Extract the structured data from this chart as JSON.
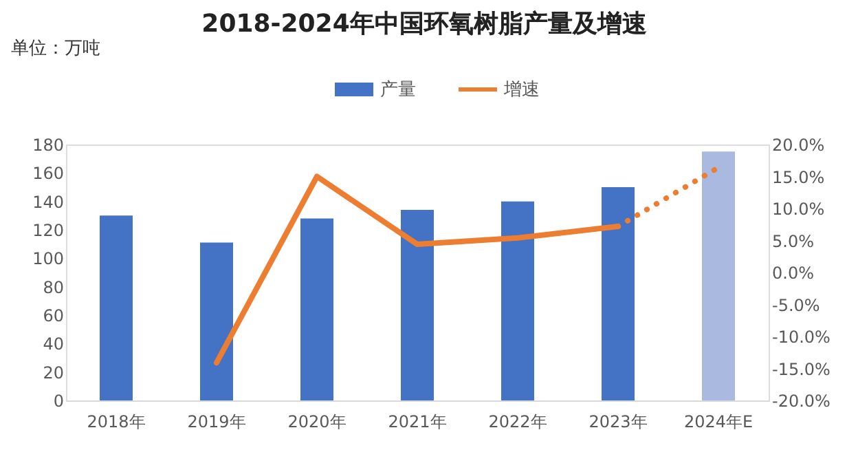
{
  "chart_data": {
    "type": "bar",
    "title": "2018-2024年中国环氧树脂产量及增速",
    "annotations": [
      "单位：万吨"
    ],
    "categories": [
      "2018年",
      "2019年",
      "2020年",
      "2021年",
      "2022年",
      "2023年",
      "2024年E"
    ],
    "series": [
      {
        "name": "产量",
        "color": "#4472c4",
        "colors": [
          "#4472c4",
          "#4472c4",
          "#4472c4",
          "#4472c4",
          "#4472c4",
          "#4472c4",
          "#a9b9e0"
        ],
        "values": [
          130,
          111,
          128,
          134,
          140,
          150,
          175
        ]
      },
      {
        "name": "增速",
        "type": "line",
        "axis": "y2",
        "color": "#ed7d31",
        "line_style": "solid",
        "values": [
          null,
          -14.1,
          15.0,
          4.4,
          5.4,
          7.2,
          null
        ]
      },
      {
        "type": "line",
        "axis": "y2",
        "color": "#ed7d31",
        "line_style": "dotted",
        "values": [
          null,
          null,
          null,
          null,
          null,
          7.2,
          16.4
        ]
      }
    ],
    "ylim": [
      0,
      180
    ],
    "yticks": [
      0,
      20,
      40,
      60,
      80,
      100,
      120,
      140,
      160,
      180
    ],
    "y2lim": [
      -20,
      20
    ],
    "y2ticks": [
      {
        "value": -20,
        "label": "-20.0%"
      },
      {
        "value": -15,
        "label": "-15.0%"
      },
      {
        "value": -10,
        "label": "-10.0%"
      },
      {
        "value": -5,
        "label": "-5.0%"
      },
      {
        "value": 0,
        "label": "0.0%"
      },
      {
        "value": 5,
        "label": "5.0%"
      },
      {
        "value": 10,
        "label": "10.0%"
      },
      {
        "value": 15,
        "label": "15.0%"
      },
      {
        "value": 20,
        "label": "20.0%"
      }
    ],
    "grid": false,
    "legend": "top"
  }
}
